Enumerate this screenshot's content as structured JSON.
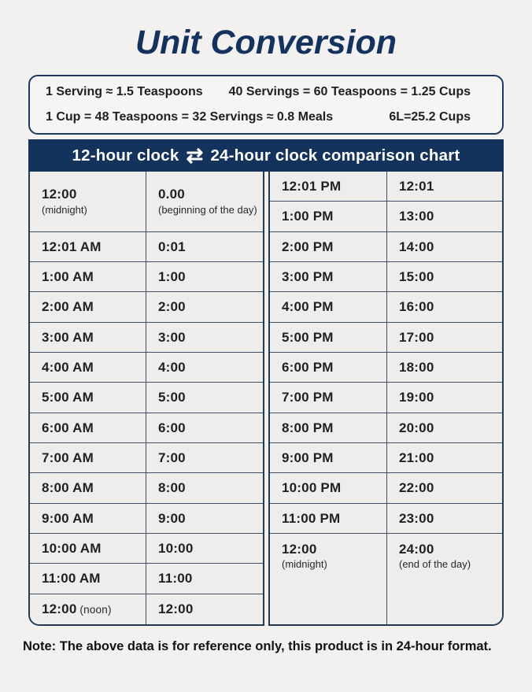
{
  "title": "Unit Conversion",
  "conversion_box": {
    "line1_left": "1 Serving ≈ 1.5 Teaspoons",
    "line1_right": "40 Servings = 60 Teaspoons = 1.25 Cups",
    "line2_left": "1 Cup = 48 Teaspoons = 32 Servings ≈ 0.8 Meals",
    "line2_right": "6L=25.2 Cups"
  },
  "table_header": {
    "left": "12-hour clock",
    "swap_icon": "⇄",
    "right": "24-hour clock comparison chart"
  },
  "tables": {
    "left": {
      "rows": [
        {
          "c12": {
            "text": "12:00",
            "sub": "(midnight)"
          },
          "c24": {
            "text": "0.00",
            "sub": "(beginning of the day)"
          },
          "span": 2
        },
        {
          "c12": {
            "text": "12:01 AM"
          },
          "c24": {
            "text": "0:01"
          }
        },
        {
          "c12": {
            "text": "1:00 AM"
          },
          "c24": {
            "text": "1:00"
          }
        },
        {
          "c12": {
            "text": "2:00 AM"
          },
          "c24": {
            "text": "2:00"
          }
        },
        {
          "c12": {
            "text": "3:00 AM"
          },
          "c24": {
            "text": "3:00"
          }
        },
        {
          "c12": {
            "text": "4:00 AM"
          },
          "c24": {
            "text": "4:00"
          }
        },
        {
          "c12": {
            "text": "5:00 AM"
          },
          "c24": {
            "text": "5:00"
          }
        },
        {
          "c12": {
            "text": "6:00 AM"
          },
          "c24": {
            "text": "6:00"
          }
        },
        {
          "c12": {
            "text": "7:00 AM"
          },
          "c24": {
            "text": "7:00"
          }
        },
        {
          "c12": {
            "text": "8:00 AM"
          },
          "c24": {
            "text": "8:00"
          }
        },
        {
          "c12": {
            "text": "9:00 AM"
          },
          "c24": {
            "text": "9:00"
          }
        },
        {
          "c12": {
            "text": "10:00 AM"
          },
          "c24": {
            "text": "10:00"
          }
        },
        {
          "c12": {
            "text": "11:00 AM"
          },
          "c24": {
            "text": "11:00"
          }
        },
        {
          "c12": {
            "text": "12:00",
            "subInline": "(noon)"
          },
          "c24": {
            "text": "12:00"
          }
        }
      ]
    },
    "right": {
      "rows": [
        {
          "c12": {
            "text": "12:01 PM"
          },
          "c24": {
            "text": "12:01"
          }
        },
        {
          "c12": {
            "text": "1:00 PM"
          },
          "c24": {
            "text": "13:00"
          }
        },
        {
          "c12": {
            "text": "2:00 PM"
          },
          "c24": {
            "text": "14:00"
          }
        },
        {
          "c12": {
            "text": "3:00 PM"
          },
          "c24": {
            "text": "15:00"
          }
        },
        {
          "c12": {
            "text": "4:00 PM"
          },
          "c24": {
            "text": "16:00"
          }
        },
        {
          "c12": {
            "text": "5:00 PM"
          },
          "c24": {
            "text": "17:00"
          }
        },
        {
          "c12": {
            "text": "6:00 PM"
          },
          "c24": {
            "text": "18:00"
          }
        },
        {
          "c12": {
            "text": "7:00 PM"
          },
          "c24": {
            "text": "19:00"
          }
        },
        {
          "c12": {
            "text": "8:00 PM"
          },
          "c24": {
            "text": "20:00"
          }
        },
        {
          "c12": {
            "text": "9:00 PM"
          },
          "c24": {
            "text": "21:00"
          }
        },
        {
          "c12": {
            "text": "10:00 PM"
          },
          "c24": {
            "text": "22:00"
          }
        },
        {
          "c12": {
            "text": "11:00 PM"
          },
          "c24": {
            "text": "23:00"
          }
        },
        {
          "c12": {
            "text": "12:00",
            "sub": "(midnight)"
          },
          "c24": {
            "text": "24:00",
            "sub": "(end of the day)"
          },
          "span": 3,
          "top": true
        }
      ]
    }
  },
  "note": "Note: The above data is for reference only, this product is in 24-hour format.",
  "colors": {
    "navy": "#14335c",
    "grid_line": "#3e4e60",
    "cell_bg": "#eeedeb",
    "page_bg": "#f2f1ef",
    "text_dark": "#1e2124"
  }
}
